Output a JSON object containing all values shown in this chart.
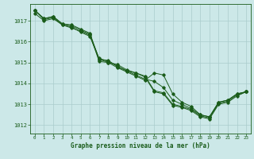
{
  "title": "Graphe pression niveau de la mer (hPa)",
  "xlabel_hours": [
    0,
    1,
    2,
    3,
    4,
    5,
    6,
    7,
    8,
    9,
    10,
    11,
    12,
    13,
    14,
    15,
    16,
    17,
    18,
    19,
    20,
    21,
    22,
    23
  ],
  "ylim": [
    1011.6,
    1017.8
  ],
  "yticks": [
    1012,
    1013,
    1014,
    1015,
    1016,
    1017
  ],
  "bg_color": "#cce8e8",
  "grid_color": "#aacccc",
  "line_color": "#1a5c1a",
  "line1": [
    1017.5,
    1017.1,
    1017.2,
    1016.85,
    1016.8,
    1016.6,
    1016.4,
    1015.15,
    1015.1,
    1014.8,
    1014.6,
    1014.4,
    1014.2,
    1014.1,
    1013.8,
    1013.2,
    1013.0,
    1012.8,
    1012.5,
    1012.4,
    1013.1,
    1013.2,
    1013.5,
    1013.6
  ],
  "line2": [
    1017.5,
    1017.1,
    1017.2,
    1016.85,
    1016.75,
    1016.55,
    1016.35,
    1015.05,
    1015.0,
    1014.75,
    1014.55,
    1014.35,
    1014.15,
    1014.5,
    1014.4,
    1013.5,
    1013.1,
    1012.9,
    1012.5,
    1012.4,
    1013.1,
    1013.2,
    1013.5,
    1013.6
  ],
  "line3": [
    1017.5,
    1017.05,
    1017.15,
    1016.8,
    1016.65,
    1016.5,
    1016.3,
    1015.2,
    1015.05,
    1014.82,
    1014.6,
    1014.5,
    1014.35,
    1013.65,
    1013.55,
    1013.0,
    1012.9,
    1012.75,
    1012.45,
    1012.35,
    1013.05,
    1013.15,
    1013.45,
    1013.6
  ],
  "line4": [
    1017.35,
    1017.0,
    1017.1,
    1016.8,
    1016.7,
    1016.45,
    1016.25,
    1015.15,
    1015.0,
    1014.9,
    1014.65,
    1014.5,
    1014.3,
    1013.6,
    1013.5,
    1012.95,
    1012.85,
    1012.7,
    1012.4,
    1012.3,
    1013.0,
    1013.1,
    1013.4,
    1013.6
  ]
}
